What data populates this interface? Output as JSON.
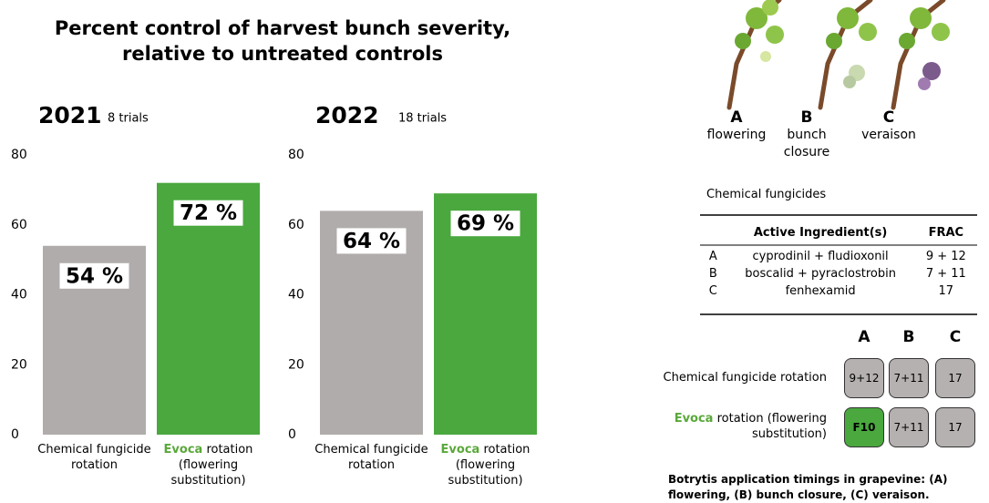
{
  "title": "Percent control of harvest bunch severity, relative to untreated controls",
  "chart_data": [
    {
      "type": "bar",
      "title": "2021",
      "subtitle": "8 trials",
      "categories": [
        "Chemical fungicide rotation",
        "Evoca rotation (flowering substitution)"
      ],
      "values": [
        54,
        72
      ],
      "value_labels": [
        "54 %",
        "72 %"
      ],
      "colors": [
        "#b0acab",
        "#4aa83e"
      ],
      "ylim": [
        0,
        80
      ],
      "yticks": [
        0,
        20,
        40,
        60,
        80
      ]
    },
    {
      "type": "bar",
      "title": "2022",
      "subtitle": "18 trials",
      "categories": [
        "Chemical fungicide rotation",
        "Evoca rotation (flowering substitution)"
      ],
      "values": [
        64,
        69
      ],
      "value_labels": [
        "64 %",
        "69 %"
      ],
      "colors": [
        "#b0acab",
        "#4aa83e"
      ],
      "ylim": [
        0,
        80
      ],
      "yticks": [
        0,
        20,
        40,
        60,
        80
      ]
    }
  ],
  "stages": [
    {
      "letter": "A",
      "label": "flowering"
    },
    {
      "letter": "B",
      "label": "bunch closure"
    },
    {
      "letter": "C",
      "label": "veraison"
    }
  ],
  "fungicide_table": {
    "caption": "Chemical fungicides",
    "headers": [
      "Active Ingredient(s)",
      "FRAC"
    ],
    "rows": [
      [
        "A",
        "cyprodinil + fludioxonil",
        "9 + 12"
      ],
      [
        "B",
        "boscalid + pyraclostrobin",
        "7 + 11"
      ],
      [
        "C",
        "fenhexamid",
        "17"
      ]
    ]
  },
  "rotation": {
    "columns": [
      "A",
      "B",
      "C"
    ],
    "rows": [
      {
        "label": "Chemical fungicide rotation",
        "cells": [
          "9+12",
          "7+11",
          "17"
        ]
      },
      {
        "label": "Evoca rotation (flowering substitution)",
        "cells": [
          "F10",
          "7+11",
          "17"
        ]
      }
    ]
  },
  "footnote": "Botrytis application timings in grapevine: (A) flowering, (B) bunch closure, (C) veraison."
}
